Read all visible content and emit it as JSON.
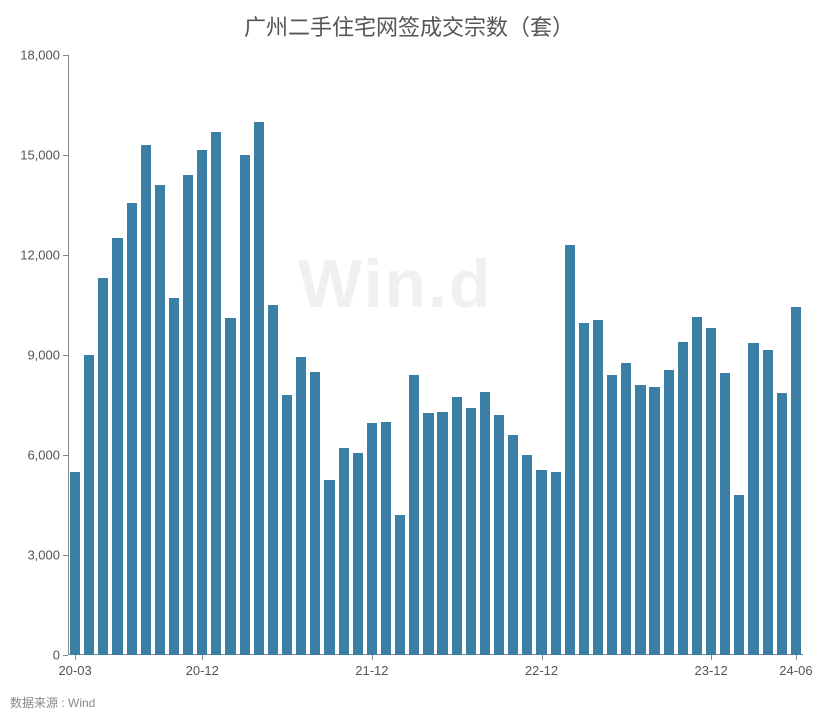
{
  "chart": {
    "type": "bar",
    "title": "广州二手住宅网签成交宗数（套）",
    "title_fontsize": 22,
    "title_color": "#555555",
    "background_color": "#ffffff",
    "bar_color": "#3b7fa6",
    "axis_color": "#888888",
    "label_color": "#555555",
    "label_fontsize": 13,
    "watermark_text": "Win.d",
    "watermark_color": "rgba(0,0,0,0.06)",
    "source_text": "数据来源 : Wind",
    "source_color": "#888888",
    "ylim": [
      0,
      18000
    ],
    "ytick_step": 3000,
    "ytick_labels": [
      "0",
      "3,000",
      "6,000",
      "9,000",
      "12,000",
      "15,000",
      "18,000"
    ],
    "bar_width_ratio": 0.72,
    "x_labels": [
      "20-03",
      "",
      "",
      "",
      "",
      "",
      "",
      "",
      "",
      "20-12",
      "",
      "",
      "",
      "",
      "",
      "",
      "",
      "",
      "",
      "",
      "",
      "21-12",
      "",
      "",
      "",
      "",
      "",
      "",
      "",
      "",
      "",
      "",
      "",
      "22-12",
      "",
      "",
      "",
      "",
      "",
      "",
      "",
      "",
      "",
      "",
      "",
      "23-12",
      "",
      "",
      "",
      "",
      "",
      "24-06"
    ],
    "x_tick_indices": [
      0,
      9,
      21,
      33,
      45,
      51
    ],
    "values": [
      5500,
      9000,
      11300,
      12500,
      13550,
      15300,
      14100,
      10700,
      14400,
      15150,
      15700,
      10100,
      15000,
      16000,
      10500,
      7800,
      8950,
      8500,
      5250,
      6200,
      6050,
      6950,
      7000,
      4200,
      8400,
      7250,
      7300,
      7750,
      7400,
      7900,
      7200,
      6600,
      6000,
      5550,
      5500,
      12300,
      9950,
      10050,
      8400,
      8750,
      8100,
      8050,
      8550,
      9400,
      10150,
      9800,
      8450,
      4800,
      9350,
      9150,
      7850,
      10450
    ]
  }
}
